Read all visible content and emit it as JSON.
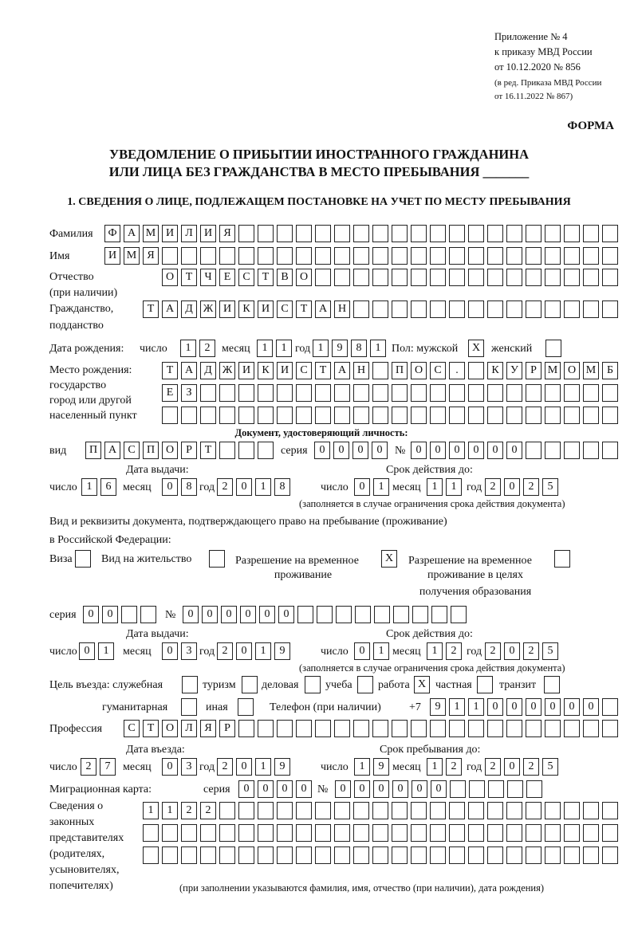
{
  "header": {
    "appendix": "Приложение № 4",
    "order": "к приказу МВД России",
    "order_date": "от 10.12.2020 № 856",
    "edition1": "(в ред. Приказа МВД России",
    "edition2": "от 16.11.2022 № 867)",
    "form_label": "ФОРМА",
    "title_line1": "УВЕДОМЛЕНИЕ О ПРИБЫТИИ ИНОСТРАННОГО ГРАЖДАНИНА",
    "title_line2": "ИЛИ ЛИЦА БЕЗ ГРАЖДАНСТВА В МЕСТО ПРЕБЫВАНИЯ _______",
    "section1": "1. СВЕДЕНИЯ О ЛИЦЕ, ПОДЛЕЖАЩЕМ ПОСТАНОВКЕ НА УЧЕТ ПО МЕСТУ ПРЕБЫВАНИЯ"
  },
  "labels": {
    "surname": "Фамилия",
    "name": "Имя",
    "patronymic": "Отчество",
    "patronymic_note": "(при наличии)",
    "citizenship": "Гражданство,",
    "citizenship2": "подданство",
    "birth_date": "Дата рождения:",
    "day": "число",
    "month": "месяц",
    "year": "год",
    "sex": "Пол: мужской",
    "female": "женский",
    "birthplace1": "Место рождения:",
    "birthplace2": "государство",
    "birthplace3": "город или другой",
    "birthplace4": "населенный пункт",
    "id_doc": "Документ, удостоверяющий личность:",
    "kind": "вид",
    "series": "серия",
    "number": "№",
    "issue_date": "Дата выдачи:",
    "valid_until": "Срок действия до:",
    "validity_note": "(заполняется в случае ограничения срока действия документа)",
    "right_doc1": "Вид и реквизиты документа, подтверждающего право на пребывание (проживание)",
    "right_doc2": "в Российской Федерации:",
    "visa": "Виза",
    "residence": "Вид на жительство",
    "rvp1": "Разрешение на временное",
    "rvp2": "проживание",
    "rvpo1": "Разрешение на временное",
    "rvpo2": "проживание в целях",
    "rvpo3": "получения образования",
    "purpose": "Цель въезда: служебная",
    "tourism": "туризм",
    "business": "деловая",
    "study": "учеба",
    "work": "работа",
    "private": "частная",
    "transit": "транзит",
    "humanitarian": "гуманитарная",
    "other": "иная",
    "phone": "Телефон (при наличии)",
    "phone_prefix": "+7",
    "profession": "Профессия",
    "entry_date": "Дата въезда:",
    "stay_until": "Срок пребывания до:",
    "migration_card": "Миграционная карта:",
    "reps1": "Сведения о",
    "reps2": "законных",
    "reps3": "представителях",
    "reps4": "(родителях,",
    "reps5": "усыновителях,",
    "reps6": "попечителях)",
    "reps_note": "(при заполнении указываются фамилия, имя, отчество (при наличии), дата рождения)"
  },
  "person": {
    "surname": "ФАМИЛИЯ",
    "name": "ИМЯ",
    "patronymic": "ОТЧЕСТВО",
    "citizenship": "ТАДЖИКИСТАН",
    "birth_day": "12",
    "birth_month": "11",
    "birth_year": "1981",
    "sex_male": "X",
    "sex_female": "",
    "birthplace_line1": "ТАДЖИКИСТАН ПОС. КУРМОМБ",
    "birthplace_line2": "ЕЗ",
    "birthplace_line3": ""
  },
  "id_document": {
    "kind": "ПАСПОРТ",
    "series": "0000",
    "number": "000000",
    "issue_day": "16",
    "issue_month": "08",
    "issue_year": "2018",
    "valid_day": "01",
    "valid_month": "11",
    "valid_year": "2025"
  },
  "right_document": {
    "visa": "",
    "residence_permit": "",
    "temp_residence": "X",
    "temp_residence_study": "",
    "series": "00",
    "number": "000000",
    "issue_day": "01",
    "issue_month": "03",
    "issue_year": "2019",
    "valid_day": "01",
    "valid_month": "12",
    "valid_year": "2025"
  },
  "purpose": {
    "official": "",
    "tourism": "",
    "business": "",
    "study": "",
    "work": "X",
    "private": "",
    "transit": "",
    "humanitarian": "",
    "other": ""
  },
  "phone": "911000000",
  "profession": "СТОЛЯР",
  "entry": {
    "entry_day": "27",
    "entry_month": "03",
    "entry_year": "2019",
    "stay_day": "19",
    "stay_month": "12",
    "stay_year": "2025"
  },
  "migration_card": {
    "series": "0000",
    "number": "000000"
  },
  "representatives": {
    "line1": "1122",
    "line2": "",
    "line3": ""
  }
}
